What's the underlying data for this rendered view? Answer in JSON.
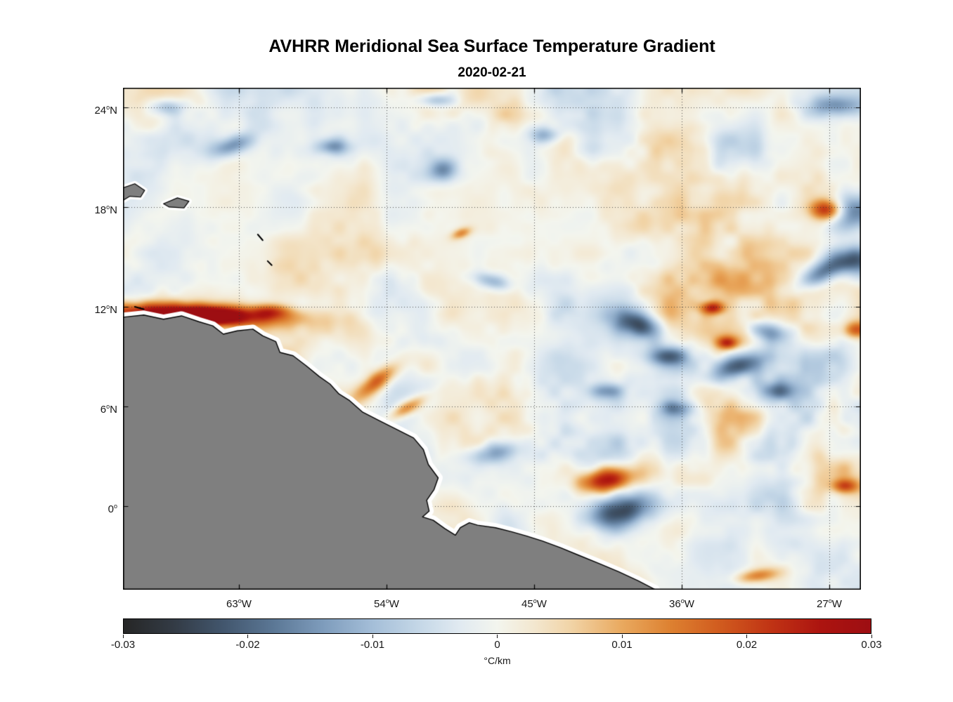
{
  "chart_data": {
    "type": "heatmap",
    "title": "AVHRR Meridional Sea Surface Temperature Gradient",
    "subtitle": "2020-02-21",
    "xlabel": "",
    "ylabel": "",
    "grid": "dotted",
    "extent": {
      "lon_min": -70.07,
      "lon_max": -25.07,
      "lat_min": -5.03,
      "lat_max": 25.18
    },
    "x_axis": {
      "ticks": [
        {
          "v": "63",
          "u": "W",
          "lon": -63
        },
        {
          "v": "54",
          "u": "W",
          "lon": -54
        },
        {
          "v": "45",
          "u": "W",
          "lon": -45
        },
        {
          "v": "36",
          "u": "W",
          "lon": -36
        },
        {
          "v": "27",
          "u": "W",
          "lon": -27
        }
      ]
    },
    "y_axis": {
      "ticks": [
        {
          "v": "24",
          "u": "N",
          "lat": 24
        },
        {
          "v": "18",
          "u": "N",
          "lat": 18
        },
        {
          "v": "12",
          "u": "N",
          "lat": 12
        },
        {
          "v": "6",
          "u": "N",
          "lat": 6
        },
        {
          "v": "0",
          "u": "",
          "lat": 0
        }
      ]
    },
    "colorbar": {
      "label": "°C/km",
      "range": [
        -0.03,
        0.03
      ],
      "ticks": [
        {
          "label": "-0.03",
          "value": -0.03
        },
        {
          "label": "-0.02",
          "value": -0.02
        },
        {
          "label": "-0.01",
          "value": -0.01
        },
        {
          "label": "0",
          "value": 0
        },
        {
          "label": "0.01",
          "value": 0.01
        },
        {
          "label": "0.02",
          "value": 0.02
        },
        {
          "label": "0.03",
          "value": 0.03
        }
      ],
      "colormap": [
        {
          "v": -0.03,
          "c": "#262626"
        },
        {
          "v": -0.026,
          "c": "#333b45"
        },
        {
          "v": -0.022,
          "c": "#42566d"
        },
        {
          "v": -0.018,
          "c": "#5b7795"
        },
        {
          "v": -0.014,
          "c": "#7e9cbc"
        },
        {
          "v": -0.01,
          "c": "#a4bed8"
        },
        {
          "v": -0.006,
          "c": "#c7d9e8"
        },
        {
          "v": -0.003,
          "c": "#e1eaf1"
        },
        {
          "v": 0.0,
          "c": "#f3f5ee"
        },
        {
          "v": 0.003,
          "c": "#f3e7cf"
        },
        {
          "v": 0.006,
          "c": "#f1d3a5"
        },
        {
          "v": 0.01,
          "c": "#e9a95f"
        },
        {
          "v": 0.014,
          "c": "#dd8030"
        },
        {
          "v": 0.018,
          "c": "#d05a1e"
        },
        {
          "v": 0.022,
          "c": "#c03314"
        },
        {
          "v": 0.026,
          "c": "#ac1410"
        },
        {
          "v": 0.03,
          "c": "#9d0e12"
        }
      ]
    },
    "land": {
      "fill": "#7f7f7f",
      "outline": "#000000",
      "halo": "#ffffff",
      "coastline": [
        [
          -70.07,
          11.37
        ],
        [
          -68.8,
          11.5
        ],
        [
          -67.6,
          11.25
        ],
        [
          -66.5,
          11.45
        ],
        [
          -65.45,
          11.1
        ],
        [
          -64.6,
          10.85
        ],
        [
          -63.95,
          10.35
        ],
        [
          -63.1,
          10.55
        ],
        [
          -62.15,
          10.65
        ],
        [
          -61.55,
          10.25
        ],
        [
          -60.75,
          9.9
        ],
        [
          -60.5,
          9.25
        ],
        [
          -59.7,
          9.05
        ],
        [
          -58.9,
          8.45
        ],
        [
          -58.1,
          7.8
        ],
        [
          -57.45,
          7.35
        ],
        [
          -56.9,
          6.75
        ],
        [
          -56.25,
          6.35
        ],
        [
          -55.45,
          5.65
        ],
        [
          -54.45,
          5.15
        ],
        [
          -53.45,
          4.65
        ],
        [
          -52.35,
          4.1
        ],
        [
          -51.75,
          3.4
        ],
        [
          -51.45,
          2.5
        ],
        [
          -50.85,
          1.7
        ],
        [
          -51.1,
          1.0
        ],
        [
          -51.55,
          0.35
        ],
        [
          -51.4,
          -0.3
        ],
        [
          -51.8,
          -0.65
        ],
        [
          -51.15,
          -0.85
        ],
        [
          -50.45,
          -1.35
        ],
        [
          -49.8,
          -1.75
        ],
        [
          -49.5,
          -1.3
        ],
        [
          -48.95,
          -1.0
        ],
        [
          -48.45,
          -1.15
        ],
        [
          -47.35,
          -1.3
        ],
        [
          -46.35,
          -1.55
        ],
        [
          -45.45,
          -1.8
        ],
        [
          -44.5,
          -2.1
        ],
        [
          -43.4,
          -2.5
        ],
        [
          -42.3,
          -2.95
        ],
        [
          -41.05,
          -3.45
        ],
        [
          -39.85,
          -3.95
        ],
        [
          -38.65,
          -4.5
        ],
        [
          -37.6,
          -5.03
        ]
      ],
      "islands": [
        [
          [
            -70.07,
            19.15
          ],
          [
            -69.35,
            19.4
          ],
          [
            -68.75,
            19.0
          ],
          [
            -69.0,
            18.6
          ],
          [
            -69.65,
            18.65
          ],
          [
            -70.07,
            18.4
          ]
        ],
        [
          [
            -67.6,
            18.2
          ],
          [
            -66.75,
            18.55
          ],
          [
            -66.05,
            18.35
          ],
          [
            -66.35,
            17.95
          ],
          [
            -67.25,
            18.0
          ]
        ]
      ],
      "island_marks": [
        [
          [
            -61.85,
            16.35
          ],
          [
            -61.55,
            16.0
          ]
        ],
        [
          [
            -61.25,
            14.75
          ],
          [
            -61.0,
            14.5
          ]
        ],
        [
          [
            -69.35,
            12.0
          ],
          [
            -68.8,
            11.85
          ]
        ]
      ]
    },
    "field": {
      "seed": 20200221,
      "octaves": [
        {
          "cell": 78,
          "amp": 0.0046
        },
        {
          "cell": 39,
          "amp": 0.0026
        },
        {
          "cell": 18,
          "amp": 0.0013
        }
      ],
      "mod_cell": 170,
      "mod_base": 0.5,
      "mod_gain": 1.0,
      "east_base": 0.75,
      "east_gain": 0.55,
      "features": [
        {
          "lon": -66.2,
          "lat": 11.6,
          "amp": 0.035,
          "sx": 4.0,
          "sy": 0.45,
          "rot": 2
        },
        {
          "lon": -65.0,
          "lat": 11.5,
          "amp": 0.02,
          "sx": 1.2,
          "sy": 0.3,
          "rot": 0
        },
        {
          "lon": -61.1,
          "lat": 11.8,
          "amp": 0.013,
          "sx": 0.8,
          "sy": 0.3,
          "rot": 0
        },
        {
          "lon": -54.6,
          "lat": 7.6,
          "amp": 0.018,
          "sx": 1.2,
          "sy": 0.4,
          "rot": -38
        },
        {
          "lon": -52.8,
          "lat": 6.0,
          "amp": 0.015,
          "sx": 0.9,
          "sy": 0.3,
          "rot": -30
        },
        {
          "lon": -40.7,
          "lat": 1.65,
          "amp": 0.03,
          "sx": 1.1,
          "sy": 0.5,
          "rot": -8
        },
        {
          "lon": -27.2,
          "lat": 17.9,
          "amp": 0.024,
          "sx": 0.7,
          "sy": 0.45,
          "rot": 0
        },
        {
          "lon": -34.2,
          "lat": 12.0,
          "amp": 0.021,
          "sx": 0.5,
          "sy": 0.27,
          "rot": 0
        },
        {
          "lon": -33.3,
          "lat": 9.9,
          "amp": 0.019,
          "sx": 0.45,
          "sy": 0.27,
          "rot": 0
        },
        {
          "lon": -25.4,
          "lat": 10.7,
          "amp": 0.017,
          "sx": 0.55,
          "sy": 0.35,
          "rot": 0
        },
        {
          "lon": -31.5,
          "lat": -4.1,
          "amp": 0.015,
          "sx": 0.95,
          "sy": 0.3,
          "rot": -8
        },
        {
          "lon": -26.1,
          "lat": 1.3,
          "amp": 0.016,
          "sx": 0.6,
          "sy": 0.3,
          "rot": 0
        },
        {
          "lon": -49.5,
          "lat": 16.5,
          "amp": 0.013,
          "sx": 0.45,
          "sy": 0.22,
          "rot": -20
        },
        {
          "lon": -39.9,
          "lat": -0.3,
          "amp": -0.024,
          "sx": 1.45,
          "sy": 0.7,
          "rot": -12
        },
        {
          "lon": -38.8,
          "lat": 11.1,
          "amp": -0.021,
          "sx": 1.1,
          "sy": 0.55,
          "rot": 18
        },
        {
          "lon": -36.9,
          "lat": 9.1,
          "amp": -0.016,
          "sx": 0.85,
          "sy": 0.42,
          "rot": 0
        },
        {
          "lon": -32.8,
          "lat": 8.5,
          "amp": -0.019,
          "sx": 1.1,
          "sy": 0.5,
          "rot": -18
        },
        {
          "lon": -30.9,
          "lat": 10.6,
          "amp": -0.017,
          "sx": 0.95,
          "sy": 0.45,
          "rot": 10
        },
        {
          "lon": -27.4,
          "lat": 14.2,
          "amp": -0.019,
          "sx": 1.3,
          "sy": 0.5,
          "rot": -28
        },
        {
          "lon": -25.5,
          "lat": 17.8,
          "amp": -0.021,
          "sx": 1.1,
          "sy": 0.8,
          "rot": 0
        },
        {
          "lon": -30.2,
          "lat": 7.0,
          "amp": -0.015,
          "sx": 0.8,
          "sy": 0.4,
          "rot": 0
        },
        {
          "lon": -26.6,
          "lat": 24.1,
          "amp": -0.012,
          "sx": 1.3,
          "sy": 0.45,
          "rot": 0
        },
        {
          "lon": -63.4,
          "lat": 21.8,
          "amp": -0.015,
          "sx": 0.95,
          "sy": 0.42,
          "rot": -18
        },
        {
          "lon": -57.4,
          "lat": 21.7,
          "amp": -0.013,
          "sx": 0.7,
          "sy": 0.35,
          "rot": 0
        },
        {
          "lon": -50.6,
          "lat": 20.3,
          "amp": -0.015,
          "sx": 0.6,
          "sy": 0.5,
          "rot": 0
        },
        {
          "lon": -47.6,
          "lat": 13.6,
          "amp": -0.013,
          "sx": 0.8,
          "sy": 0.35,
          "rot": 14
        },
        {
          "lon": -44.4,
          "lat": 22.4,
          "amp": -0.011,
          "sx": 0.7,
          "sy": 0.35,
          "rot": 0
        },
        {
          "lon": -47.4,
          "lat": 3.3,
          "amp": -0.015,
          "sx": 0.95,
          "sy": 0.45,
          "rot": -10
        },
        {
          "lon": -40.7,
          "lat": 7.0,
          "amp": -0.013,
          "sx": 0.7,
          "sy": 0.35,
          "rot": 0
        },
        {
          "lon": -36.4,
          "lat": 6.0,
          "amp": -0.013,
          "sx": 0.7,
          "sy": 0.35,
          "rot": 0
        },
        {
          "lon": -67.5,
          "lat": 24.1,
          "amp": -0.011,
          "sx": 0.8,
          "sy": 0.35,
          "rot": 0
        },
        {
          "lon": -25.2,
          "lat": 14.8,
          "amp": -0.018,
          "sx": 0.8,
          "sy": 0.6,
          "rot": 0
        },
        {
          "lon": -51.0,
          "lat": 24.5,
          "amp": -0.012,
          "sx": 0.8,
          "sy": 0.3,
          "rot": 0
        }
      ]
    }
  }
}
